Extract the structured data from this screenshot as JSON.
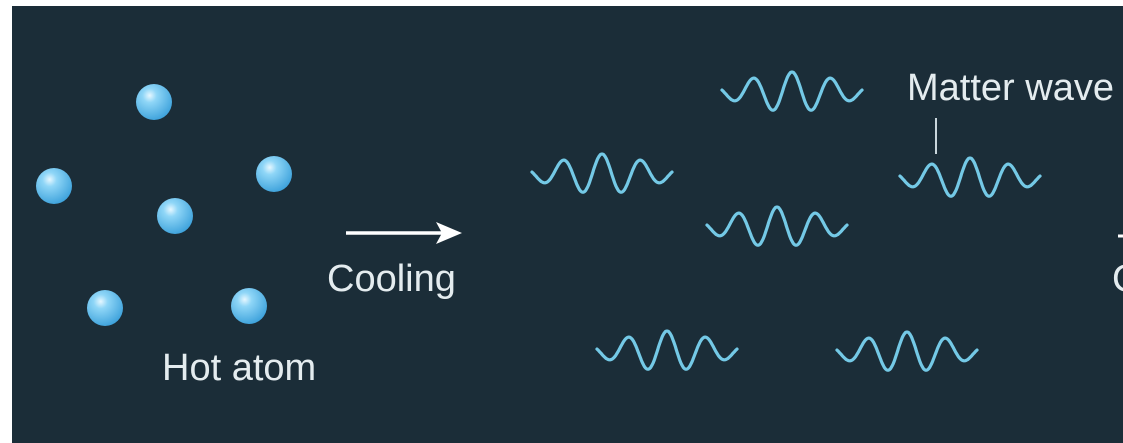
{
  "labels": {
    "hot_atom": "Hot atom",
    "cooling": "Cooling",
    "matter_wave": "Matter wave",
    "cut_off_fragment": "C"
  },
  "colors": {
    "background": "#1b2d38",
    "text": "#e4ecef",
    "atom_fill": "#60c0ef",
    "atom_highlight": "#e6f7ff",
    "wave_stroke": "#74c9e6",
    "arrow": "#ffffff",
    "leader_line": "#c9d6dc"
  },
  "icons": {
    "atom": "sphere",
    "wave": "wave-packet",
    "arrow": "arrow-right"
  }
}
